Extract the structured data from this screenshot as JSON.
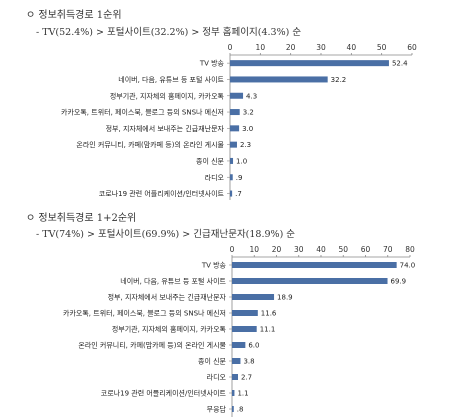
{
  "sections": [
    {
      "title": "ㅇ 정보취득경로 1순위",
      "summary": "- TV(52.4%) > 포털사이트(32.2%) > 정부 홈페이지(4.3%) 순"
    },
    {
      "title": "ㅇ 정보취득경로 1+2순위",
      "summary": "- TV(74%) > 포털사이트(69.9%) > 긴급재난문자(18.9%) 순"
    }
  ],
  "chart_data": [
    {
      "type": "bar",
      "orientation": "horizontal",
      "categories": [
        "TV 방송",
        "네이버, 다음, 유튜브 등 포털 사이트",
        "정부기관, 지자체의 홈페이지, 카카오톡",
        "카카오톡, 트위터, 페이스북, 블로그 등의 SNS나 메신저",
        "정부, 지자체에서 보내주는 긴급재난문자",
        "온라인 커뮤니티, 카페(맘카페 등)의 온라인 게시물",
        "종이 신문",
        "라디오",
        "코로나19 관련 어플리케이션/인터넷사이트"
      ],
      "values": [
        52.4,
        32.2,
        4.3,
        3.2,
        3.0,
        2.3,
        1.0,
        0.9,
        0.7
      ],
      "value_labels": [
        "52.4",
        "32.2",
        "4.3",
        "3.2",
        "3.0",
        "2.3",
        "1.0",
        ".9",
        ".7"
      ],
      "xlim": [
        0,
        60
      ],
      "xticks": [
        "0",
        "10",
        "20",
        "30",
        "40",
        "50",
        "60"
      ],
      "bar_color": "#4a6fa5"
    },
    {
      "type": "bar",
      "orientation": "horizontal",
      "categories": [
        "TV 방송",
        "네이버, 다음, 유튜브 등 포털 사이트",
        "정부, 지자체에서 보내주는 긴급재난문자",
        "카카오톡, 트위터, 페이스북, 블로그 등의 SNS나 메신저",
        "정부기관, 지자체의 홈페이지, 카카오톡",
        "온라인 커뮤니티, 카페(맘카페 등)의 온라인 게시물",
        "종이 신문",
        "라디오",
        "코로나19 관련 어플리케이션/인터넷사이트",
        "무응답"
      ],
      "values": [
        74.0,
        69.9,
        18.9,
        11.6,
        11.1,
        6.0,
        3.8,
        2.7,
        1.1,
        0.8
      ],
      "value_labels": [
        "74.0",
        "69.9",
        "18.9",
        "11.6",
        "11.1",
        "6.0",
        "3.8",
        "2.7",
        "1.1",
        ".8"
      ],
      "xlim": [
        0,
        80
      ],
      "xticks": [
        "0",
        "10",
        "20",
        "30",
        "40",
        "50",
        "60",
        "70",
        "80"
      ],
      "bar_color": "#4a6fa5"
    }
  ]
}
